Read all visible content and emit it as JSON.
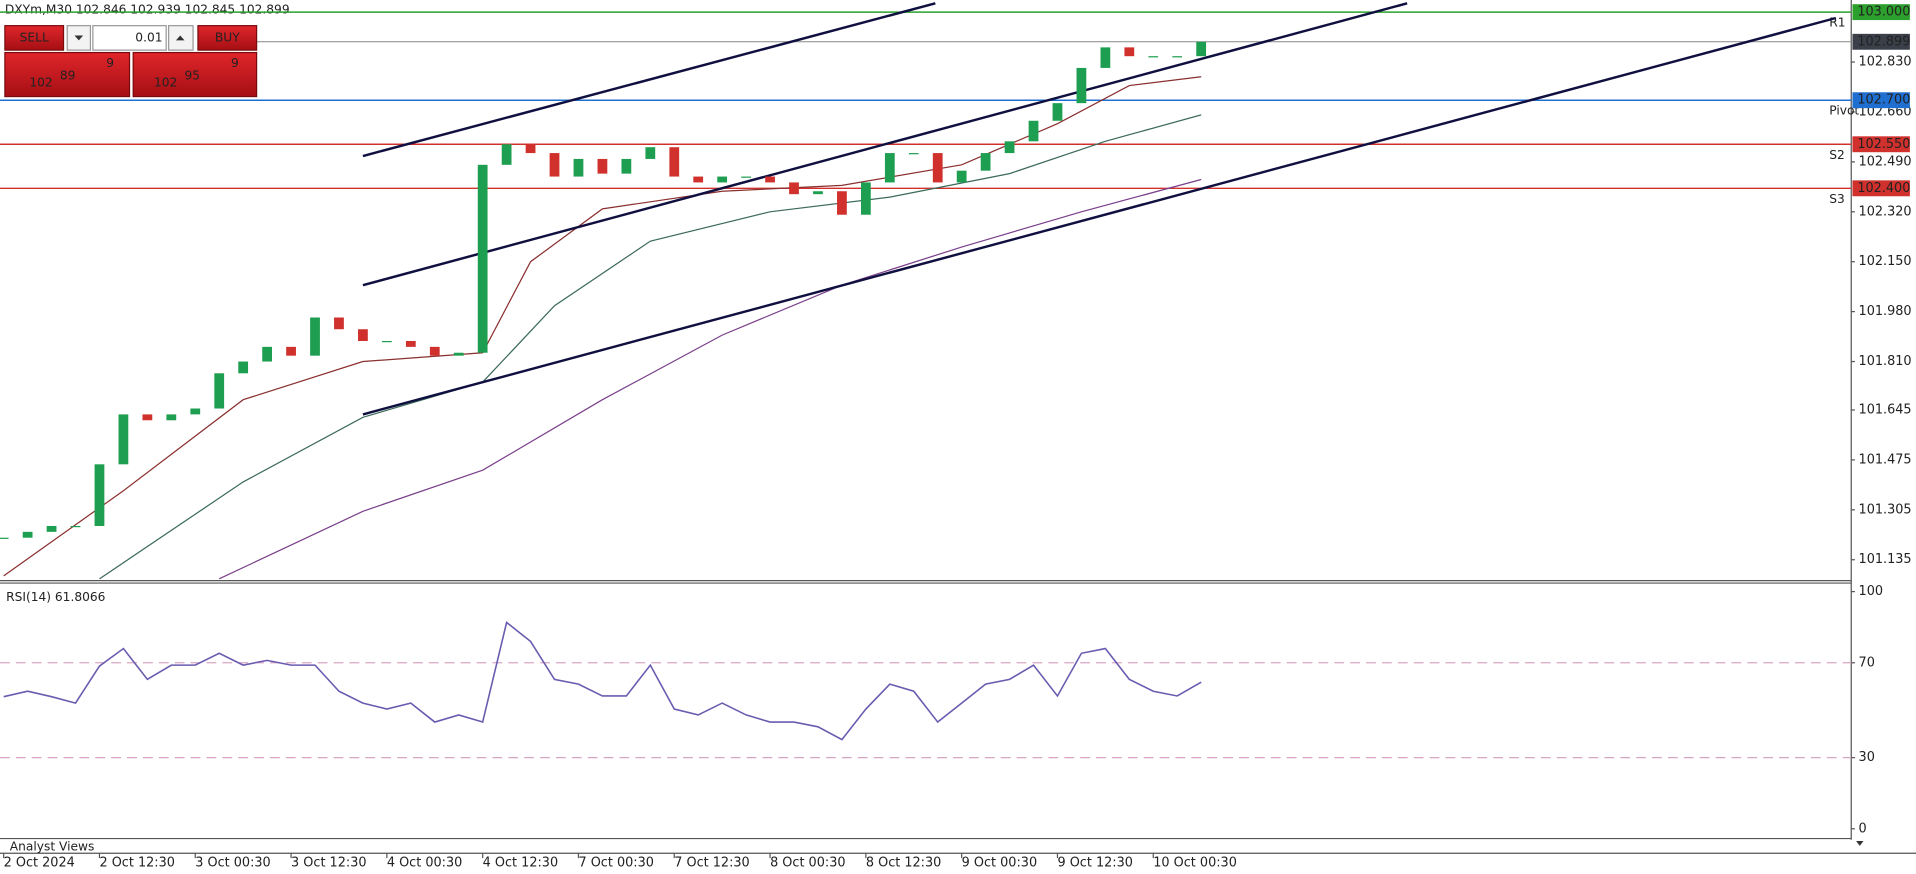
{
  "trade_panel": {
    "sell_label": "SELL",
    "buy_label": "BUY",
    "volume": 0.01,
    "sell_price": {
      "big": 102,
      "main": 89,
      "small": 9
    },
    "buy_price": {
      "big": 102,
      "main": 95,
      "small": 9
    }
  },
  "chart_data": [
    {
      "type": "candlestick",
      "title": "DXYm,M30  102.846 102.939 102.845 102.899",
      "categories": [
        "2 Oct 2024",
        null,
        null,
        null,
        "2 Oct 12:30",
        null,
        null,
        null,
        "3 Oct 00:30",
        null,
        null,
        null,
        "3 Oct 12:30",
        null,
        null,
        null,
        "4 Oct 00:30",
        null,
        null,
        null,
        "4 Oct 12:30",
        null,
        null,
        null,
        "7 Oct 00:30",
        null,
        null,
        null,
        "7 Oct 12:30",
        null,
        null,
        null,
        "8 Oct 00:30",
        null,
        null,
        null,
        "8 Oct 12:30",
        null,
        null,
        null,
        "9 Oct 00:30",
        null,
        null,
        null,
        "9 Oct 12:30",
        null,
        null,
        null,
        "10 Oct 00:30",
        null,
        null
      ],
      "values": [
        101.21,
        101.23,
        101.25,
        101.25,
        101.46,
        101.63,
        101.61,
        101.63,
        101.65,
        101.77,
        101.81,
        101.86,
        101.83,
        101.96,
        101.92,
        101.88,
        101.88,
        101.86,
        101.83,
        101.84,
        102.48,
        102.55,
        102.52,
        102.44,
        102.5,
        102.45,
        102.5,
        102.54,
        102.44,
        102.42,
        102.44,
        102.44,
        102.42,
        102.38,
        102.39,
        102.31,
        102.42,
        102.52,
        102.52,
        102.42,
        102.46,
        102.52,
        102.56,
        102.63,
        102.69,
        102.81,
        102.88,
        102.85,
        102.85,
        102.85,
        102.899
      ],
      "up_color": "#1e9e50",
      "down_color": "#d0312d",
      "ylim": [
        101.068,
        103.033
      ],
      "yticks": [
        {
          "value": 102.83,
          "label": "102.830"
        },
        {
          "value": 102.66,
          "label": "102.660"
        },
        {
          "value": 102.49,
          "label": "102.490"
        },
        {
          "value": 102.32,
          "label": "102.320"
        },
        {
          "value": 102.15,
          "label": "102.150"
        },
        {
          "value": 101.98,
          "label": "101.980"
        },
        {
          "value": 101.81,
          "label": "101.810"
        },
        101.645,
        101.475,
        101.305,
        101.135
      ],
      "current_price": {
        "value": 102.899,
        "label": "102.899",
        "color": "#3a3f4a"
      },
      "levels": [
        {
          "value": 103.0,
          "label": "103.000",
          "name": "R1",
          "color": "#2ca02c"
        },
        {
          "value": 102.7,
          "label": "102.700",
          "name": "Pivot",
          "color": "#1f6fd1"
        },
        {
          "value": 102.55,
          "label": "102.550",
          "name": "S2",
          "color": "#d0312d"
        },
        {
          "value": 102.4,
          "label": "102.400",
          "name": "S3",
          "color": "#d0312d"
        }
      ],
      "moving_averages": [
        {
          "color": "#8b2f2f",
          "x": [
            0,
            5,
            10,
            15,
            20,
            22,
            25,
            30,
            35,
            40,
            44,
            47,
            50
          ],
          "values": [
            101.08,
            101.37,
            101.68,
            101.81,
            101.84,
            102.15,
            102.33,
            102.39,
            102.41,
            102.48,
            102.62,
            102.75,
            102.78
          ]
        },
        {
          "color": "#3c6a5a",
          "x": [
            4,
            10,
            15,
            20,
            23,
            27,
            32,
            37,
            42,
            46,
            50
          ],
          "values": [
            101.07,
            101.4,
            101.62,
            101.74,
            102.0,
            102.22,
            102.32,
            102.37,
            102.45,
            102.56,
            102.65
          ]
        },
        {
          "color": "#7a3f8a",
          "x": [
            9,
            15,
            20,
            25,
            30,
            35,
            40,
            45,
            50
          ],
          "values": [
            101.07,
            101.3,
            101.44,
            101.68,
            101.9,
            102.07,
            102.2,
            102.32,
            102.43
          ]
        }
      ],
      "trendline_color": "#101040",
      "trendlines": [
        {
          "x": [
            15,
            38.9
          ],
          "values": [
            102.51,
            103.03
          ]
        },
        {
          "x": [
            15,
            58.6
          ],
          "values": [
            102.07,
            103.03
          ]
        },
        {
          "x": [
            15,
            76.5
          ],
          "values": [
            101.63,
            102.98
          ]
        }
      ],
      "footer": "Analyst Views"
    },
    {
      "type": "line",
      "title": "RSI(14) 61.8066",
      "color": "#6b5bb0",
      "values": [
        55.7,
        58,
        55.7,
        53,
        68.6,
        76,
        63,
        69,
        69,
        74,
        69,
        71,
        69,
        69,
        58,
        53,
        50.5,
        53,
        45,
        48,
        45,
        87,
        79,
        63,
        61,
        56,
        56,
        69,
        50.5,
        48,
        53,
        48,
        45,
        45,
        43,
        37.6,
        50.5,
        61,
        58,
        45,
        53,
        61,
        63,
        69,
        56,
        74,
        76,
        63,
        58,
        56,
        61.8
      ],
      "ylim": [
        -3.6,
        103.6
      ],
      "yticks": [
        100,
        70,
        30,
        0
      ],
      "levels": [
        70,
        30
      ],
      "level_color": "#d6a6c4"
    }
  ]
}
